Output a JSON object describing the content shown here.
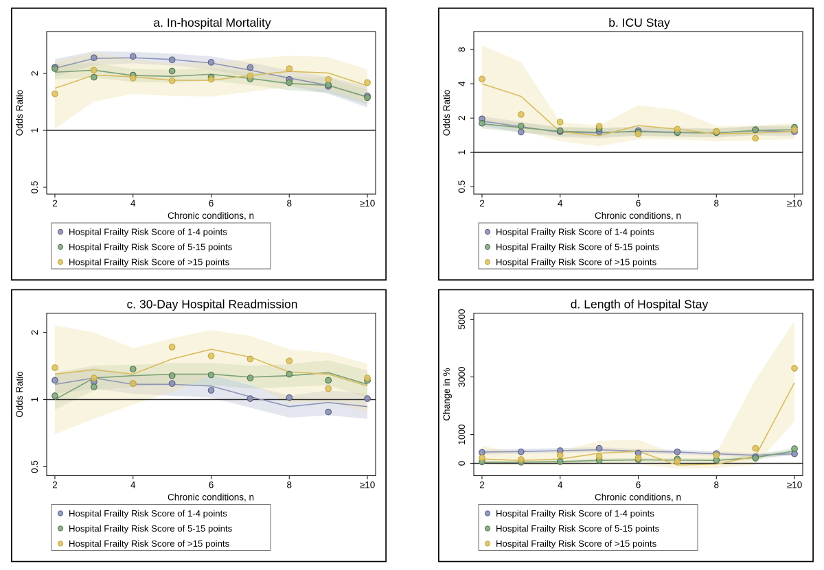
{
  "figure_title": "",
  "legend_labels": [
    "Hospital Frailty Risk Score of 1-4 points",
    "Hospital Frailty Risk Score of 5-15 points",
    "Hospital Frailty Risk Score of >15 points"
  ],
  "colors": {
    "hfrs_1_4": {
      "line": "#8e94b6",
      "dot": "#8a90b4",
      "dot_edge": "#595f8a",
      "band": "#b9bdd6"
    },
    "hfrs_5_15": {
      "line": "#7ba077",
      "dot": "#83aa7d",
      "dot_edge": "#4f7251",
      "band": "#b5ceae"
    },
    "hfrs_gt15": {
      "line": "#d7bc5e",
      "dot": "#ddc363",
      "dot_edge": "#c3a63e",
      "band": "#eee3ab"
    }
  },
  "chart_data": [
    {
      "panel": "a",
      "type": "line",
      "title": "a. In-hospital Mortality",
      "xlabel": "Chronic conditions, n",
      "ylabel": "Odds Ratio",
      "x": [
        2,
        3,
        4,
        5,
        6,
        7,
        8,
        9,
        10
      ],
      "xticks": [
        {
          "v": 2,
          "label": "2"
        },
        {
          "v": 4,
          "label": "4"
        },
        {
          "v": 6,
          "label": "6"
        },
        {
          "v": 8,
          "label": "8"
        },
        {
          "v": 10,
          "label": "≥10"
        }
      ],
      "xlim": [
        1.79,
        10.21
      ],
      "yscale": "log2",
      "ylim": [
        0.46,
        3.33
      ],
      "yticks": [
        {
          "v": 0.5,
          "label": "0.5"
        },
        {
          "v": 1,
          "label": "1"
        },
        {
          "v": 2,
          "label": "2"
        }
      ],
      "ref_line": 1,
      "grid": false,
      "legend_position": "below-left",
      "series": [
        {
          "key": "hfrs_1_4",
          "name": "Hospital Frailty Risk Score of 1-4 points",
          "dots": [
            2.16,
            2.42,
            2.46,
            2.36,
            2.29,
            2.15,
            1.86,
            1.71,
            1.52
          ],
          "line": [
            2.13,
            2.4,
            2.42,
            2.37,
            2.27,
            2.08,
            1.89,
            1.73,
            1.5
          ],
          "band_lo": [
            1.92,
            2.21,
            2.26,
            2.2,
            2.1,
            1.9,
            1.72,
            1.56,
            1.32
          ],
          "band_hi": [
            2.38,
            2.62,
            2.6,
            2.55,
            2.46,
            2.28,
            2.08,
            1.92,
            1.71
          ]
        },
        {
          "key": "hfrs_5_15",
          "name": "Hospital Frailty Risk Score of 5-15 points",
          "dots": [
            2.12,
            1.91,
            1.96,
            2.06,
            1.91,
            1.87,
            1.79,
            1.74,
            1.49
          ],
          "line": [
            2.03,
            2.08,
            1.95,
            1.93,
            1.98,
            1.88,
            1.77,
            1.73,
            1.5
          ],
          "band_lo": [
            1.86,
            1.9,
            1.8,
            1.79,
            1.83,
            1.74,
            1.63,
            1.58,
            1.37
          ],
          "band_hi": [
            2.23,
            2.27,
            2.11,
            2.09,
            2.14,
            2.04,
            1.93,
            1.89,
            1.64
          ]
        },
        {
          "key": "hfrs_gt15",
          "name": "Hospital Frailty Risk Score of >15 points",
          "dots": [
            1.56,
            2.08,
            1.89,
            1.83,
            1.86,
            1.94,
            2.12,
            1.86,
            1.79
          ],
          "line": [
            1.67,
            1.96,
            1.92,
            1.84,
            1.84,
            1.95,
            2.05,
            2.01,
            1.72
          ],
          "band_lo": [
            1.02,
            1.42,
            1.56,
            1.52,
            1.51,
            1.6,
            1.7,
            1.64,
            1.41
          ],
          "band_hi": [
            2.3,
            2.58,
            2.38,
            2.26,
            2.28,
            2.39,
            2.48,
            2.44,
            2.1
          ]
        }
      ]
    },
    {
      "panel": "b",
      "type": "line",
      "title": "b. ICU Stay",
      "xlabel": "Chronic conditions, n",
      "ylabel": "Odds Ratio",
      "x": [
        2,
        3,
        4,
        5,
        6,
        7,
        8,
        9,
        10
      ],
      "xticks": [
        {
          "v": 2,
          "label": "2"
        },
        {
          "v": 4,
          "label": "4"
        },
        {
          "v": 6,
          "label": "6"
        },
        {
          "v": 8,
          "label": "8"
        },
        {
          "v": 10,
          "label": "≥10"
        }
      ],
      "xlim": [
        1.79,
        10.21
      ],
      "yscale": "log2",
      "ylim": [
        0.43,
        11.5
      ],
      "yticks": [
        {
          "v": 0.5,
          "label": "0.5"
        },
        {
          "v": 1,
          "label": "1"
        },
        {
          "v": 2,
          "label": "2"
        },
        {
          "v": 4,
          "label": "4"
        },
        {
          "v": 8,
          "label": "8"
        }
      ],
      "ref_line": 1,
      "grid": false,
      "legend_position": "below-left",
      "series": [
        {
          "key": "hfrs_1_4",
          "name": "Hospital Frailty Risk Score of 1-4 points",
          "dots": [
            1.97,
            1.51,
            1.52,
            1.52,
            1.55,
            1.5,
            1.5,
            1.58,
            1.52
          ],
          "line": [
            1.88,
            1.68,
            1.5,
            1.48,
            1.54,
            1.5,
            1.48,
            1.55,
            1.52
          ],
          "band_lo": [
            1.7,
            1.5,
            1.36,
            1.33,
            1.4,
            1.37,
            1.35,
            1.41,
            1.38
          ],
          "band_hi": [
            2.07,
            1.86,
            1.65,
            1.63,
            1.69,
            1.64,
            1.62,
            1.7,
            1.67
          ]
        },
        {
          "key": "hfrs_5_15",
          "name": "Hospital Frailty Risk Score of 5-15 points",
          "dots": [
            1.8,
            1.7,
            1.55,
            1.62,
            1.5,
            1.49,
            1.49,
            1.58,
            1.66
          ],
          "line": [
            1.78,
            1.65,
            1.53,
            1.5,
            1.52,
            1.49,
            1.48,
            1.56,
            1.58
          ],
          "band_lo": [
            1.62,
            1.5,
            1.39,
            1.37,
            1.39,
            1.37,
            1.36,
            1.43,
            1.44
          ],
          "band_hi": [
            1.95,
            1.81,
            1.68,
            1.64,
            1.66,
            1.62,
            1.61,
            1.7,
            1.73
          ]
        },
        {
          "key": "hfrs_gt15",
          "name": "Hospital Frailty Risk Score of >15 points",
          "dots": [
            4.4,
            2.15,
            1.85,
            1.7,
            1.45,
            1.6,
            1.53,
            1.33,
            1.58
          ],
          "line": [
            4.0,
            3.1,
            1.52,
            1.4,
            1.72,
            1.6,
            1.45,
            1.48,
            1.53
          ],
          "band_lo": [
            1.95,
            1.55,
            1.25,
            1.13,
            1.3,
            1.3,
            1.25,
            1.28,
            1.3
          ],
          "band_hi": [
            8.7,
            6.2,
            1.85,
            1.72,
            2.6,
            2.35,
            1.7,
            1.72,
            1.8
          ]
        }
      ]
    },
    {
      "panel": "c",
      "type": "line",
      "title": "c. 30-Day Hospital Readmission",
      "xlabel": "Chronic conditions, n",
      "ylabel": "Odds Ratio",
      "x": [
        2,
        3,
        4,
        5,
        6,
        7,
        8,
        9,
        10
      ],
      "xticks": [
        {
          "v": 2,
          "label": "2"
        },
        {
          "v": 4,
          "label": "4"
        },
        {
          "v": 6,
          "label": "6"
        },
        {
          "v": 8,
          "label": "8"
        },
        {
          "v": 10,
          "label": "≥10"
        }
      ],
      "xlim": [
        1.79,
        10.21
      ],
      "yscale": "log2",
      "ylim": [
        0.456,
        2.44
      ],
      "yticks": [
        {
          "v": 0.5,
          "label": "0.5"
        },
        {
          "v": 1,
          "label": "1"
        },
        {
          "v": 2,
          "label": "2"
        }
      ],
      "ref_line": 1,
      "grid": false,
      "legend_position": "below-left",
      "series": [
        {
          "key": "hfrs_1_4",
          "name": "Hospital Frailty Risk Score of 1-4 points",
          "dots": [
            1.22,
            1.2,
            1.18,
            1.18,
            1.1,
            1.01,
            1.02,
            0.88,
            1.01
          ],
          "line": [
            1.17,
            1.25,
            1.17,
            1.17,
            1.15,
            1.03,
            0.93,
            0.97,
            0.93
          ],
          "band_lo": [
            1.06,
            1.12,
            1.06,
            1.04,
            1.02,
            0.92,
            0.83,
            0.85,
            0.82
          ],
          "band_hi": [
            1.3,
            1.39,
            1.29,
            1.3,
            1.29,
            1.16,
            1.04,
            1.1,
            1.06
          ]
        },
        {
          "key": "hfrs_5_15",
          "name": "Hospital Frailty Risk Score of 5-15 points",
          "dots": [
            1.04,
            1.14,
            1.37,
            1.28,
            1.29,
            1.25,
            1.3,
            1.22,
            1.22
          ],
          "line": [
            1.0,
            1.25,
            1.28,
            1.3,
            1.3,
            1.26,
            1.28,
            1.32,
            1.17
          ],
          "band_lo": [
            0.9,
            1.1,
            1.14,
            1.16,
            1.16,
            1.12,
            1.14,
            1.16,
            1.02
          ],
          "band_hi": [
            1.32,
            1.42,
            1.43,
            1.46,
            1.46,
            1.42,
            1.44,
            1.5,
            1.35
          ]
        },
        {
          "key": "hfrs_gt15",
          "name": "Hospital Frailty Risk Score of >15 points",
          "dots": [
            1.39,
            1.25,
            1.18,
            1.72,
            1.57,
            1.52,
            1.49,
            1.12,
            1.25
          ],
          "line": [
            1.3,
            1.36,
            1.3,
            1.52,
            1.68,
            1.55,
            1.33,
            1.3,
            1.15
          ],
          "band_lo": [
            0.7,
            0.82,
            0.95,
            1.08,
            1.28,
            1.18,
            0.96,
            0.98,
            0.88
          ],
          "band_hi": [
            2.15,
            2.0,
            1.7,
            1.88,
            2.05,
            1.93,
            1.68,
            1.62,
            1.45
          ]
        }
      ]
    },
    {
      "panel": "d",
      "type": "line",
      "title": "d. Length of Hospital Stay",
      "xlabel": "Chronic conditions, n",
      "ylabel": "Change in %",
      "x": [
        2,
        3,
        4,
        5,
        6,
        7,
        8,
        9,
        10
      ],
      "xticks": [
        {
          "v": 2,
          "label": "2"
        },
        {
          "v": 4,
          "label": "4"
        },
        {
          "v": 6,
          "label": "6"
        },
        {
          "v": 8,
          "label": "8"
        },
        {
          "v": 10,
          "label": "≥10"
        }
      ],
      "xlim": [
        1.79,
        10.21
      ],
      "yscale": "linear",
      "ylim": [
        -429,
        5214
      ],
      "yticks": [
        {
          "v": 0,
          "label": "0"
        },
        {
          "v": 1000,
          "label": "1000"
        },
        {
          "v": 3000,
          "label": "3000"
        },
        {
          "v": 5000,
          "label": "5000"
        }
      ],
      "ref_line": 0,
      "grid": false,
      "legend_position": "below-left",
      "series": [
        {
          "key": "hfrs_1_4",
          "name": "Hospital Frailty Risk Score of 1-4 points",
          "dots": [
            380,
            400,
            440,
            520,
            360,
            400,
            340,
            230,
            330
          ],
          "line": [
            390,
            410,
            440,
            470,
            420,
            390,
            330,
            280,
            330
          ],
          "band_lo": [
            300,
            330,
            360,
            390,
            340,
            310,
            260,
            210,
            260
          ],
          "band_hi": [
            480,
            500,
            530,
            560,
            500,
            470,
            410,
            360,
            410
          ]
        },
        {
          "key": "hfrs_5_15",
          "name": "Hospital Frailty Risk Score of 5-15 points",
          "dots": [
            50,
            40,
            60,
            110,
            130,
            150,
            110,
            180,
            510
          ],
          "line": [
            40,
            40,
            60,
            100,
            120,
            110,
            100,
            200,
            430
          ],
          "band_lo": [
            0,
            0,
            10,
            40,
            60,
            50,
            40,
            120,
            330
          ],
          "band_hi": [
            90,
            90,
            120,
            170,
            190,
            180,
            170,
            290,
            540
          ]
        },
        {
          "key": "hfrs_gt15",
          "name": "Hospital Frailty Risk Score of >15 points",
          "dots": [
            190,
            130,
            280,
            240,
            190,
            70,
            280,
            520,
            3300
          ],
          "line": [
            150,
            100,
            150,
            350,
            420,
            -60,
            -30,
            250,
            2800
          ],
          "band_lo": [
            -30,
            -60,
            -60,
            -30,
            -30,
            -180,
            -160,
            -50,
            1450
          ],
          "band_hi": [
            600,
            350,
            420,
            780,
            820,
            300,
            350,
            2900,
            4950
          ]
        }
      ]
    }
  ]
}
